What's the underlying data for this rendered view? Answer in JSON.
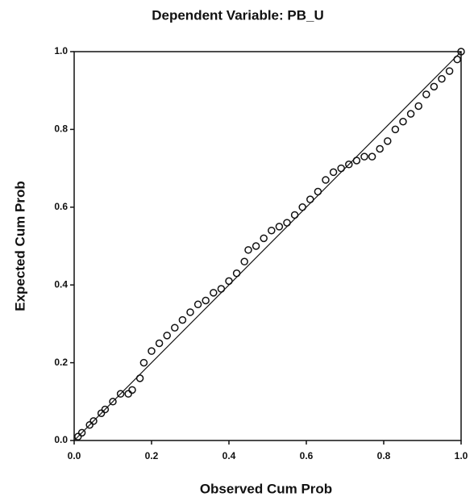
{
  "chart_data": {
    "type": "scatter",
    "title": "Dependent Variable: PB_U",
    "x_label": "Observed Cum Prob",
    "y_label": "Expected Cum Prob",
    "x": [
      0.01,
      0.02,
      0.04,
      0.05,
      0.07,
      0.08,
      0.1,
      0.12,
      0.14,
      0.15,
      0.17,
      0.18,
      0.2,
      0.22,
      0.24,
      0.26,
      0.28,
      0.3,
      0.32,
      0.34,
      0.36,
      0.38,
      0.4,
      0.42,
      0.44,
      0.45,
      0.47,
      0.49,
      0.51,
      0.53,
      0.55,
      0.57,
      0.59,
      0.61,
      0.63,
      0.65,
      0.67,
      0.69,
      0.71,
      0.73,
      0.75,
      0.77,
      0.79,
      0.81,
      0.83,
      0.85,
      0.87,
      0.89,
      0.91,
      0.93,
      0.95,
      0.97,
      0.99,
      1.0
    ],
    "values": [
      0.01,
      0.02,
      0.04,
      0.05,
      0.07,
      0.08,
      0.1,
      0.12,
      0.12,
      0.13,
      0.16,
      0.2,
      0.23,
      0.25,
      0.27,
      0.29,
      0.31,
      0.33,
      0.35,
      0.36,
      0.38,
      0.39,
      0.41,
      0.43,
      0.46,
      0.49,
      0.5,
      0.52,
      0.54,
      0.55,
      0.56,
      0.58,
      0.6,
      0.62,
      0.64,
      0.67,
      0.69,
      0.7,
      0.71,
      0.72,
      0.73,
      0.73,
      0.75,
      0.77,
      0.8,
      0.82,
      0.84,
      0.86,
      0.89,
      0.91,
      0.93,
      0.95,
      0.98,
      1.0
    ],
    "color": "#111111",
    "xlim": [
      0,
      1
    ],
    "ylim": [
      0,
      1
    ],
    "xticks": [
      {
        "value": 0,
        "label": "0.0"
      },
      0.2,
      0.4,
      0.6,
      0.8,
      {
        "value": 1,
        "label": "1.0"
      }
    ],
    "yticks": [
      {
        "value": 0,
        "label": "0.0"
      },
      0.2,
      0.4,
      0.6,
      0.8,
      {
        "value": 1,
        "label": "1.0"
      }
    ],
    "reference_line": true
  }
}
